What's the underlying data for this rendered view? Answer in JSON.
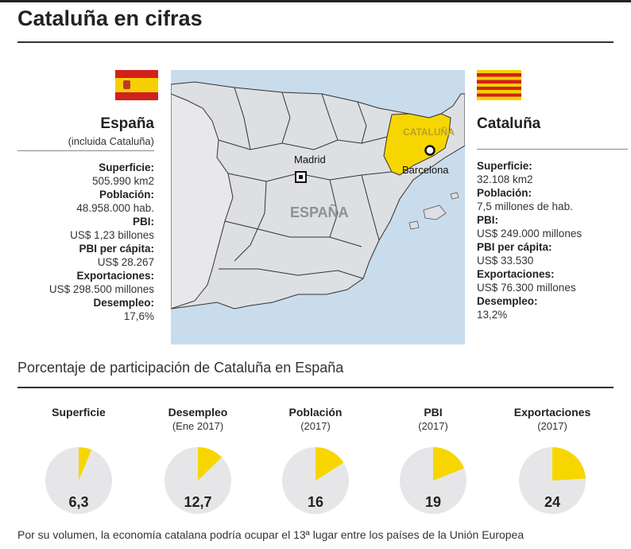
{
  "title": "Cataluña en cifras",
  "spain": {
    "name": "España",
    "note": "(incluida Cataluña)",
    "stats": [
      {
        "label": "Superficie:",
        "value": "505.990 km2"
      },
      {
        "label": "Población:",
        "value": "48.958.000 hab."
      },
      {
        "label": "PBI:",
        "value": "US$ 1,23 billones"
      },
      {
        "label": "PBI per cápita:",
        "value": "US$ 28.267"
      },
      {
        "label": "Exportaciones:",
        "value": "US$ 298.500 millones"
      },
      {
        "label": "Desempleo:",
        "value": "17,6%"
      }
    ]
  },
  "catalonia": {
    "name": "Cataluña",
    "stats": [
      {
        "label": "Superficie:",
        "value": "32.108 km2"
      },
      {
        "label": "Población:",
        "value": "7,5 millones de hab."
      },
      {
        "label": "PBI:",
        "value": "US$ 249.000 millones"
      },
      {
        "label": "PBI per cápita:",
        "value": "US$ 33.530"
      },
      {
        "label": "Exportaciones:",
        "value": "US$ 76.300 millones"
      },
      {
        "label": "Desempleo:",
        "value": "13,2%"
      }
    ]
  },
  "map": {
    "label_spain": "ESPAÑA",
    "label_catalonia": "CATALUÑA",
    "city_madrid": "Madrid",
    "city_barcelona": "Barcelona"
  },
  "colors": {
    "accent": "#f7d600",
    "pie_base": "#e6e6e8",
    "sea": "#c8dcec",
    "land": "#dddfe2",
    "flag_red": "#d0211d"
  },
  "chart_data": {
    "type": "pie",
    "title": "Porcentaje de participación de Cataluña en España",
    "unit": "%",
    "items": [
      {
        "label": "Superficie",
        "sub": "",
        "value": 6.3,
        "display": "6,3"
      },
      {
        "label": "Desempleo",
        "sub": "(Ene 2017)",
        "value": 12.7,
        "display": "12,7"
      },
      {
        "label": "Población",
        "sub": "(2017)",
        "value": 16,
        "display": "16"
      },
      {
        "label": "PBI",
        "sub": "(2017)",
        "value": 19,
        "display": "19"
      },
      {
        "label": "Exportaciones",
        "sub": "(2017)",
        "value": 24,
        "display": "24"
      }
    ]
  },
  "footnote": "Por su volumen, la economía catalana podría ocupar el 13ª lugar entre los países de la Unión Europea"
}
